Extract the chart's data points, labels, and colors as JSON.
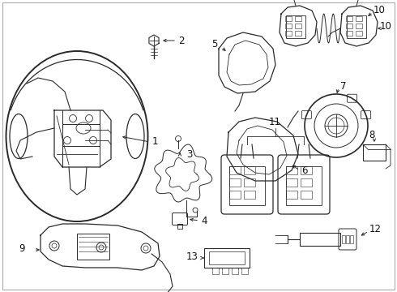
{
  "bg_color": "#ffffff",
  "line_color": "#2a2a2a",
  "text_color": "#111111",
  "border_color": "#aaaaaa",
  "fig_width": 4.9,
  "fig_height": 3.6,
  "dpi": 100
}
